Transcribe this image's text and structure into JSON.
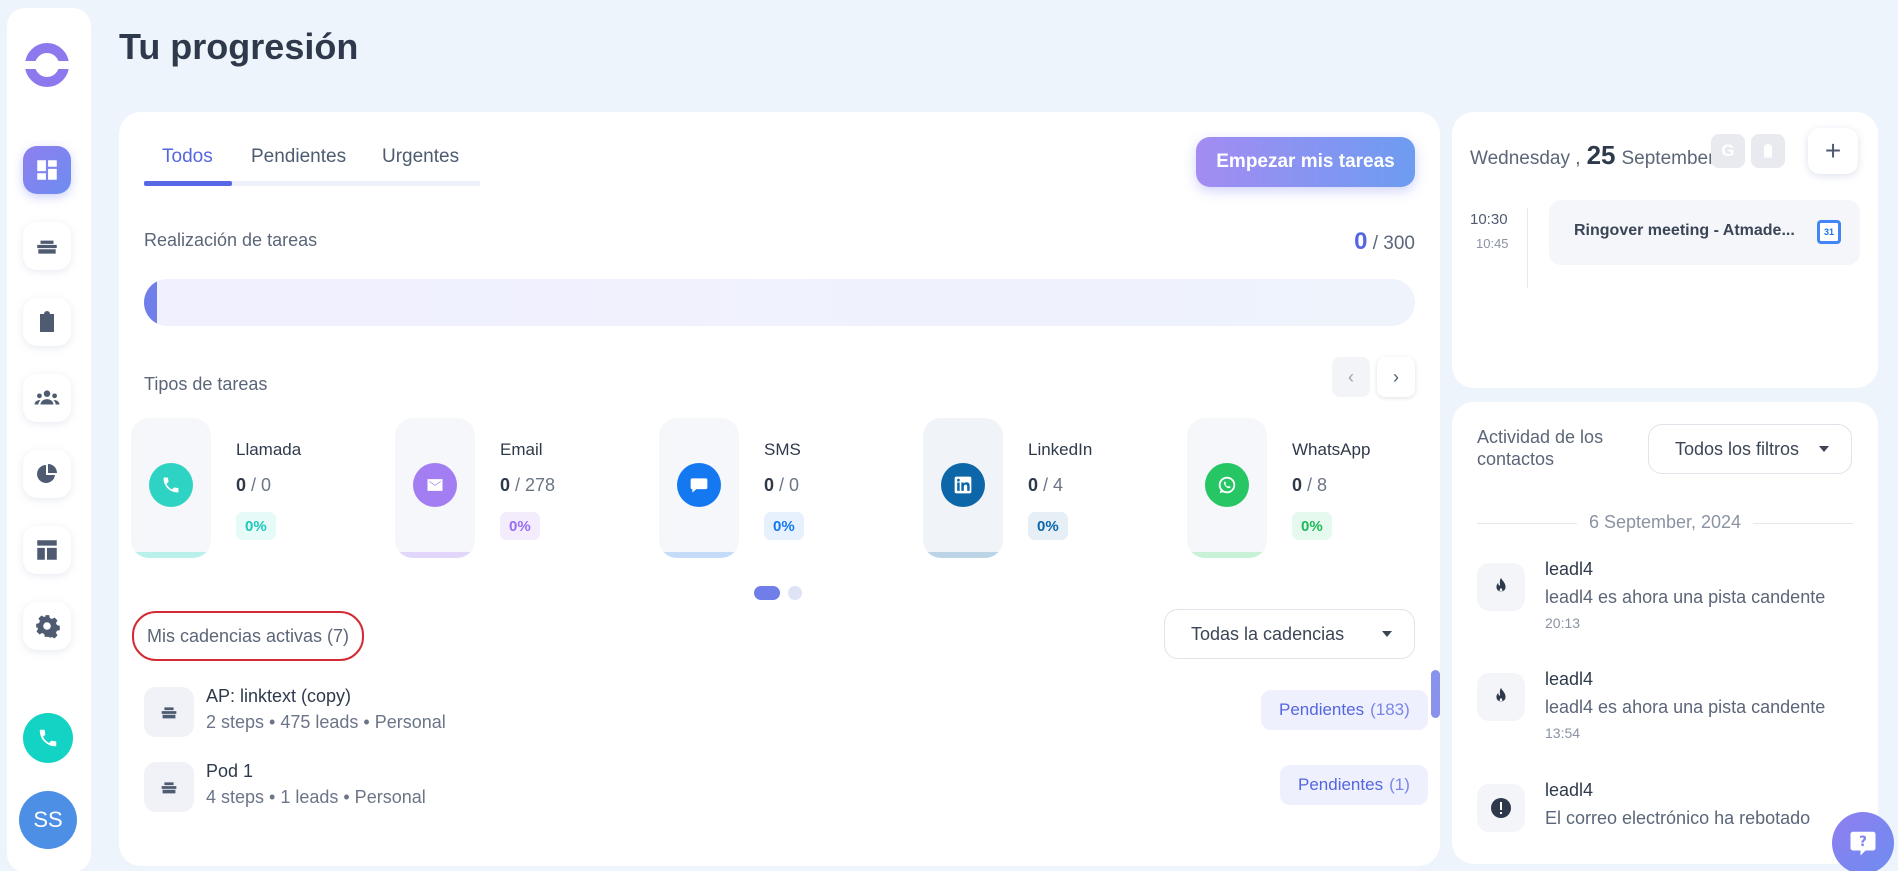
{
  "page": {
    "title": "Tu progresión"
  },
  "sidebar": {
    "items": [
      {
        "name": "dashboard-icon",
        "active": true
      },
      {
        "name": "cadences-icon",
        "active": false
      },
      {
        "name": "tasks-icon",
        "active": false
      },
      {
        "name": "contacts-icon",
        "active": false
      },
      {
        "name": "reports-icon",
        "active": false
      },
      {
        "name": "templates-icon",
        "active": false
      },
      {
        "name": "settings-icon",
        "active": false
      }
    ],
    "avatar_initials": "SS"
  },
  "tabs": [
    "Todos",
    "Pendientes",
    "Urgentes"
  ],
  "start_button": "Empezar mis tareas",
  "progress": {
    "label": "Realización de tareas",
    "done": "0",
    "total": "/ 300",
    "fraction": 0.01
  },
  "task_types": {
    "label": "Tipos de tareas",
    "items": [
      {
        "name": "Llamada",
        "done": "0",
        "total": "/ 0",
        "pct": "0%",
        "color": "#2fd3c4"
      },
      {
        "name": "Email",
        "done": "0",
        "total": "/ 278",
        "pct": "0%",
        "color": "#a37ef2"
      },
      {
        "name": "SMS",
        "done": "0",
        "total": "/ 0",
        "pct": "0%",
        "color": "#1479f0"
      },
      {
        "name": "LinkedIn",
        "done": "0",
        "total": "/ 4",
        "pct": "0%",
        "color": "#0d66a8"
      },
      {
        "name": "WhatsApp",
        "done": "0",
        "total": "/ 8",
        "pct": "0%",
        "color": "#25c663"
      }
    ]
  },
  "cadences": {
    "title": "Mis cadencias activas (7)",
    "filter": "Todas la cadencias",
    "items": [
      {
        "name": "AP: linktext (copy)",
        "meta": "2 steps • 475 leads • Personal",
        "pending_label": "Pendientes",
        "pending_count": "(183)"
      },
      {
        "name": "Pod 1",
        "meta": "4 steps • 1 leads • Personal",
        "pending_label": "Pendientes",
        "pending_count": "(1)"
      }
    ]
  },
  "calendar": {
    "weekday": "Wednesday ,",
    "day": "25",
    "month": "September",
    "event": {
      "start": "10:30",
      "end": "10:45",
      "title": "Ringover meeting - Atmade..."
    }
  },
  "activity": {
    "title": "Actividad de los contactos",
    "filter": "Todos los filtros",
    "date": "6 September, 2024",
    "items": [
      {
        "name": "leadl4",
        "desc": "leadl4 es ahora una pista candente",
        "time": "20:13",
        "icon": "fire-icon"
      },
      {
        "name": "leadl4",
        "desc": "leadl4 es ahora una pista candente",
        "time": "13:54",
        "icon": "fire-icon"
      },
      {
        "name": "leadl4",
        "desc": "El correo electrónico ha rebotado",
        "time": "",
        "icon": "alert-icon"
      }
    ]
  }
}
